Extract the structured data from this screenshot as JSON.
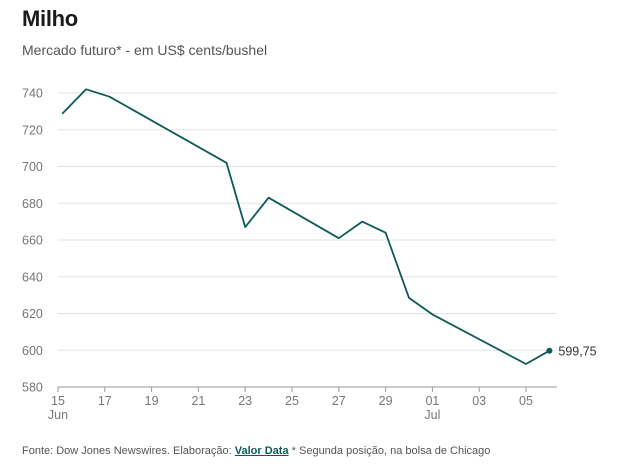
{
  "chart_data": {
    "type": "line",
    "title": "Milho",
    "subtitle": "Mercado futuro* - em US$ cents/bushel",
    "xlabel": "",
    "ylabel": "",
    "ylim": [
      580,
      740
    ],
    "yticks": [
      580,
      600,
      620,
      640,
      660,
      680,
      700,
      720,
      740
    ],
    "x_range": [
      0,
      21
    ],
    "xticks": [
      {
        "x": 0,
        "label": "15",
        "sublabel": "Jun"
      },
      {
        "x": 2,
        "label": "17",
        "sublabel": ""
      },
      {
        "x": 4,
        "label": "19",
        "sublabel": ""
      },
      {
        "x": 6,
        "label": "21",
        "sublabel": ""
      },
      {
        "x": 8,
        "label": "23",
        "sublabel": ""
      },
      {
        "x": 10,
        "label": "25",
        "sublabel": ""
      },
      {
        "x": 12,
        "label": "27",
        "sublabel": ""
      },
      {
        "x": 14,
        "label": "29",
        "sublabel": ""
      },
      {
        "x": 16,
        "label": "01",
        "sublabel": "Jul"
      },
      {
        "x": 18,
        "label": "03",
        "sublabel": ""
      },
      {
        "x": 20,
        "label": "05",
        "sublabel": ""
      }
    ],
    "series": [
      {
        "name": "Milho",
        "color": "#0d5c54",
        "points": [
          {
            "x": 0.2,
            "y": 729
          },
          {
            "x": 1.2,
            "y": 742
          },
          {
            "x": 2.2,
            "y": 738
          },
          {
            "x": 7.2,
            "y": 702
          },
          {
            "x": 8.0,
            "y": 667
          },
          {
            "x": 9.0,
            "y": 683
          },
          {
            "x": 12.0,
            "y": 661
          },
          {
            "x": 13.0,
            "y": 670
          },
          {
            "x": 14.0,
            "y": 664
          },
          {
            "x": 15.0,
            "y": 628.5
          },
          {
            "x": 16.0,
            "y": 619.5
          },
          {
            "x": 20.0,
            "y": 592.5
          },
          {
            "x": 21.0,
            "y": 599.75
          }
        ]
      }
    ],
    "end_label": "599,75"
  },
  "footer": {
    "source_prefix": "Fonte: Dow Jones Newswires. Elaboração:",
    "brand": "Valor Data",
    "note": "* Segunda posição, na bolsa de Chicago"
  }
}
